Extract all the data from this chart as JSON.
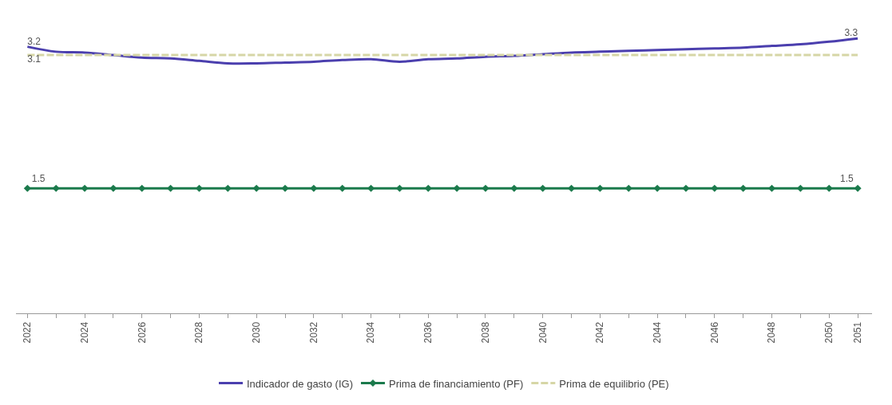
{
  "chart_data": {
    "type": "line",
    "x": [
      2022,
      2023,
      2024,
      2025,
      2026,
      2027,
      2028,
      2029,
      2030,
      2031,
      2032,
      2033,
      2034,
      2035,
      2036,
      2037,
      2038,
      2039,
      2040,
      2041,
      2042,
      2043,
      2044,
      2045,
      2046,
      2047,
      2048,
      2049,
      2050,
      2051
    ],
    "series": [
      {
        "name": "Indicador de gasto (IG)",
        "color": "#4b3fae",
        "marker": "none",
        "line_style": "solid",
        "values": [
          3.2,
          3.14,
          3.13,
          3.1,
          3.07,
          3.06,
          3.03,
          3.0,
          3.0,
          3.01,
          3.02,
          3.04,
          3.05,
          3.02,
          3.05,
          3.06,
          3.08,
          3.09,
          3.11,
          3.13,
          3.14,
          3.15,
          3.16,
          3.17,
          3.18,
          3.19,
          3.21,
          3.23,
          3.26,
          3.3
        ],
        "value_labels": [
          "3.2",
          null,
          null,
          null,
          null,
          null,
          null,
          null,
          null,
          null,
          null,
          null,
          null,
          null,
          null,
          null,
          null,
          null,
          null,
          null,
          null,
          null,
          null,
          null,
          null,
          null,
          null,
          null,
          null,
          "3.3"
        ]
      },
      {
        "name": "Prima de financiamiento (PF)",
        "color": "#1b7a4c",
        "marker": "diamond",
        "line_style": "solid",
        "values": [
          1.5,
          1.5,
          1.5,
          1.5,
          1.5,
          1.5,
          1.5,
          1.5,
          1.5,
          1.5,
          1.5,
          1.5,
          1.5,
          1.5,
          1.5,
          1.5,
          1.5,
          1.5,
          1.5,
          1.5,
          1.5,
          1.5,
          1.5,
          1.5,
          1.5,
          1.5,
          1.5,
          1.5,
          1.5,
          1.5
        ],
        "value_labels": [
          "1.5",
          null,
          null,
          null,
          null,
          null,
          null,
          null,
          null,
          null,
          null,
          null,
          null,
          null,
          null,
          null,
          null,
          null,
          null,
          null,
          null,
          null,
          null,
          null,
          null,
          null,
          null,
          null,
          null,
          "1.5"
        ]
      },
      {
        "name": "Prima de equilibrio (PE)",
        "color": "#d6d6a6",
        "marker": "none",
        "line_style": "dashed",
        "values": [
          3.1,
          3.1,
          3.1,
          3.1,
          3.1,
          3.1,
          3.1,
          3.1,
          3.1,
          3.1,
          3.1,
          3.1,
          3.1,
          3.1,
          3.1,
          3.1,
          3.1,
          3.1,
          3.1,
          3.1,
          3.1,
          3.1,
          3.1,
          3.1,
          3.1,
          3.1,
          3.1,
          3.1,
          3.1,
          3.1
        ],
        "value_labels": [
          "3.1",
          null,
          null,
          null,
          null,
          null,
          null,
          null,
          null,
          null,
          null,
          null,
          null,
          null,
          null,
          null,
          null,
          null,
          null,
          null,
          null,
          null,
          null,
          null,
          null,
          null,
          null,
          null,
          null,
          null
        ]
      }
    ],
    "xlim": [
      2021.6,
      2051.5
    ],
    "xticks": [
      2022,
      {
        "value": 2023,
        "label": null
      },
      2024,
      {
        "value": 2025,
        "label": null
      },
      2026,
      {
        "value": 2027,
        "label": null
      },
      2028,
      {
        "value": 2029,
        "label": null
      },
      2030,
      {
        "value": 2031,
        "label": null
      },
      2032,
      {
        "value": 2033,
        "label": null
      },
      2034,
      {
        "value": 2035,
        "label": null
      },
      2036,
      {
        "value": 2037,
        "label": null
      },
      2038,
      {
        "value": 2039,
        "label": null
      },
      2040,
      {
        "value": 2041,
        "label": null
      },
      2042,
      {
        "value": 2043,
        "label": null
      },
      2044,
      {
        "value": 2045,
        "label": null
      },
      2046,
      {
        "value": 2047,
        "label": null
      },
      2048,
      {
        "value": 2049,
        "label": null
      },
      2050,
      2051
    ],
    "legend": "bottom"
  }
}
